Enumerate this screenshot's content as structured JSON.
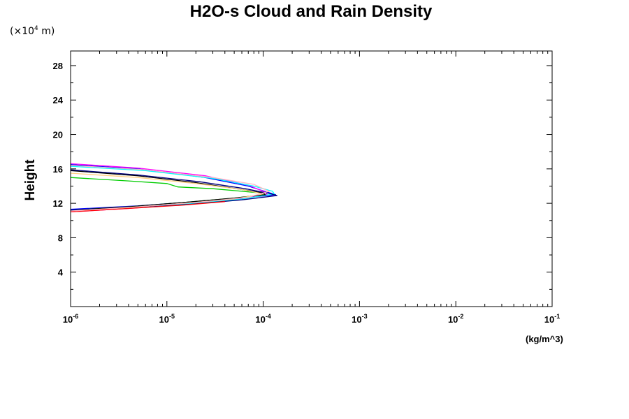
{
  "chart_data": {
    "type": "line",
    "title": "H2O-s Cloud and Rain Density",
    "ylabel": "Height",
    "xunit": "(kg/m^3)",
    "yscale_label": {
      "prefix": "(×10",
      "exp": "4",
      "suffix": " m)"
    },
    "xscale": "log",
    "xlim": [
      1e-06,
      0.1
    ],
    "ylim": [
      0,
      29.7
    ],
    "x_ticks": [
      {
        "base": "10",
        "exp": "-6",
        "value": 1e-06
      },
      {
        "base": "10",
        "exp": "-5",
        "value": 1e-05
      },
      {
        "base": "10",
        "exp": "-4",
        "value": 0.0001
      },
      {
        "base": "10",
        "exp": "-3",
        "value": 0.001
      },
      {
        "base": "10",
        "exp": "-2",
        "value": 0.01
      },
      {
        "base": "10",
        "exp": "-1",
        "value": 0.1
      }
    ],
    "y_ticks": [
      4,
      8,
      12,
      16,
      20,
      24,
      28
    ],
    "grid": false,
    "series": [
      {
        "color": "#0000ff",
        "points": [
          [
            1e-06,
            16.5
          ],
          [
            5e-06,
            16.0
          ],
          [
            2.5e-05,
            15.0
          ],
          [
            7e-05,
            14.0
          ],
          [
            0.00011,
            13.3
          ],
          [
            0.000135,
            13.0
          ],
          [
            6e-05,
            12.6
          ],
          [
            2e-05,
            12.2
          ],
          [
            5e-06,
            11.7
          ],
          [
            1e-06,
            11.3
          ]
        ]
      },
      {
        "color": "#ff00ff",
        "points": [
          [
            1e-06,
            16.6
          ],
          [
            5e-06,
            16.1
          ],
          [
            2.5e-05,
            15.2
          ],
          [
            7e-05,
            14.1
          ],
          [
            0.000105,
            13.3
          ],
          [
            0.00011,
            13.0
          ],
          [
            5e-05,
            12.4
          ],
          [
            1.5e-05,
            11.9
          ],
          [
            4e-06,
            11.4
          ],
          [
            1e-06,
            11.0
          ]
        ]
      },
      {
        "color": "#00ffff",
        "points": [
          [
            1e-06,
            16.3
          ],
          [
            6e-06,
            15.8
          ],
          [
            3e-05,
            14.9
          ],
          [
            8e-05,
            14.0
          ],
          [
            0.000125,
            13.4
          ],
          [
            0.00013,
            13.1
          ],
          [
            6e-05,
            12.5
          ],
          [
            2e-05,
            12.0
          ],
          [
            5e-06,
            11.6
          ],
          [
            1e-06,
            11.2
          ]
        ]
      },
      {
        "color": "#00cc00",
        "points": [
          [
            1e-06,
            15.0
          ],
          [
            4e-06,
            14.6
          ],
          [
            1e-05,
            14.3
          ],
          [
            1.3e-05,
            13.9
          ],
          [
            3e-05,
            13.7
          ],
          [
            6e-05,
            13.4
          ],
          [
            9.5e-05,
            13.2
          ],
          [
            0.0001,
            13.0
          ],
          [
            5e-05,
            12.6
          ],
          [
            1.5e-05,
            12.1
          ],
          [
            4e-06,
            11.6
          ],
          [
            1e-06,
            11.2
          ]
        ]
      },
      {
        "color": "#000000",
        "points": [
          [
            1e-06,
            15.8
          ],
          [
            5e-06,
            15.2
          ],
          [
            2e-05,
            14.4
          ],
          [
            6e-05,
            13.6
          ],
          [
            0.0001,
            13.2
          ],
          [
            0.000105,
            13.0
          ],
          [
            5e-05,
            12.6
          ],
          [
            1.5e-05,
            12.1
          ],
          [
            4e-06,
            11.6
          ],
          [
            1e-06,
            11.2
          ]
        ]
      },
      {
        "color": "#000080",
        "points": [
          [
            1e-06,
            15.9
          ],
          [
            5e-06,
            15.3
          ],
          [
            2.2e-05,
            14.5
          ],
          [
            6.5e-05,
            13.7
          ],
          [
            0.00011,
            13.2
          ],
          [
            0.00014,
            12.9
          ],
          [
            6e-05,
            12.4
          ],
          [
            1.8e-05,
            11.9
          ],
          [
            5e-06,
            11.5
          ],
          [
            1e-06,
            11.2
          ]
        ]
      },
      {
        "color": "#ffd080",
        "points": [
          [
            1e-06,
            15.5
          ],
          [
            5e-06,
            15.0
          ],
          [
            2e-05,
            14.3
          ],
          [
            6e-05,
            13.6
          ],
          [
            0.0001,
            13.1
          ],
          [
            5e-05,
            12.5
          ],
          [
            1.5e-05,
            12.0
          ],
          [
            4e-06,
            11.5
          ],
          [
            1e-06,
            11.1
          ]
        ]
      },
      {
        "color": "#ff0000",
        "points": [
          [
            1e-06,
            11.0
          ],
          [
            4e-06,
            11.4
          ],
          [
            1.5e-05,
            11.8
          ],
          [
            4e-05,
            12.2
          ]
        ]
      },
      {
        "color": "#ffb6c1",
        "points": [
          [
            1e-06,
            16.4
          ],
          [
            6e-06,
            15.9
          ],
          [
            3e-05,
            15.0
          ],
          [
            8e-05,
            14.2
          ],
          [
            0.000115,
            13.4
          ],
          [
            7e-05,
            12.7
          ],
          [
            2e-05,
            12.1
          ],
          [
            5e-06,
            11.6
          ],
          [
            1e-06,
            11.1
          ]
        ]
      }
    ]
  }
}
